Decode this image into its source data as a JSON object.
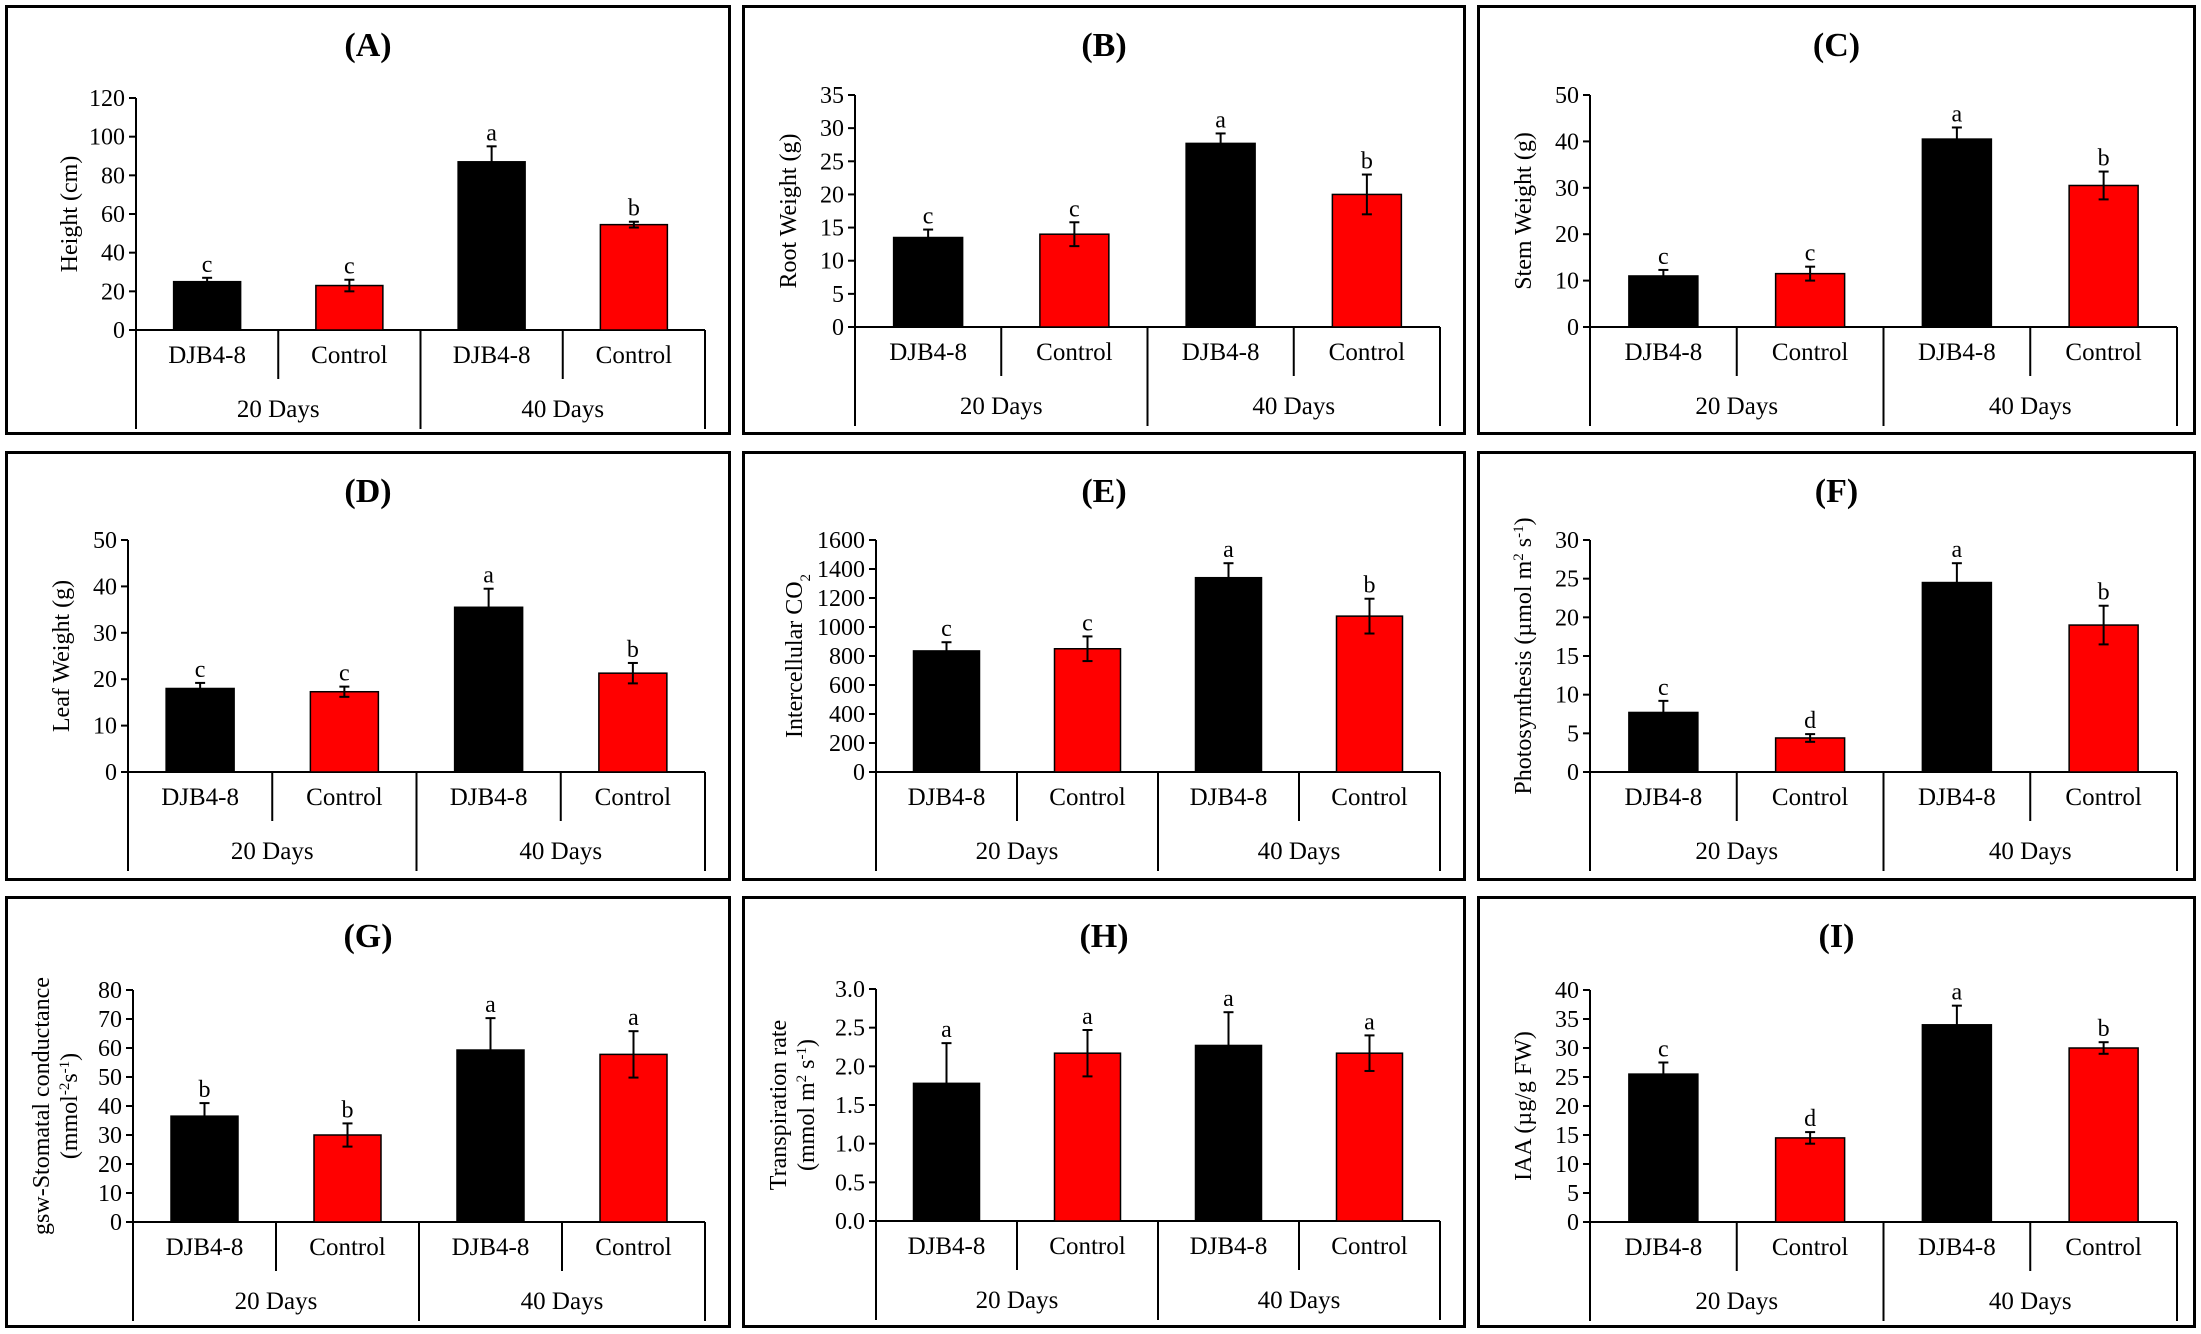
{
  "colors": {
    "djb": "#000000",
    "control": "#ff0000",
    "frame": "#000000"
  },
  "group_labels": [
    "20 Days",
    "40 Days"
  ],
  "chart_data": [
    {
      "id": "A",
      "type": "bar",
      "title": "(A)",
      "ylabel": [
        "Height (cm)"
      ],
      "ylim": [
        0,
        120
      ],
      "yticks": [
        "0",
        "20",
        "40",
        "60",
        "80",
        "100",
        "120"
      ],
      "categories": [
        "DJB4-8",
        "Control",
        "DJB4-8",
        "Control"
      ],
      "groups": [
        "20 Days",
        "40 Days"
      ],
      "values": [
        25,
        23,
        87,
        54.5
      ],
      "errors": [
        2,
        3,
        8,
        1.5
      ],
      "letters": [
        "c",
        "c",
        "a",
        "b"
      ]
    },
    {
      "id": "B",
      "type": "bar",
      "title": "(B)",
      "ylabel": [
        "Root Weight (g)"
      ],
      "ylim": [
        0,
        35
      ],
      "yticks": [
        "0",
        "5",
        "10",
        "15",
        "20",
        "25",
        "30",
        "35"
      ],
      "categories": [
        "DJB4-8",
        "Control",
        "DJB4-8",
        "Control"
      ],
      "groups": [
        "20 Days",
        "40 Days"
      ],
      "values": [
        13.5,
        14,
        27.7,
        20
      ],
      "errors": [
        1.2,
        1.8,
        1.5,
        3
      ],
      "letters": [
        "c",
        "c",
        "a",
        "b"
      ]
    },
    {
      "id": "C",
      "type": "bar",
      "title": "(C)",
      "ylabel": [
        "Stem Weight (g)"
      ],
      "ylim": [
        0,
        50
      ],
      "yticks": [
        "0",
        "10",
        "20",
        "30",
        "40",
        "50"
      ],
      "categories": [
        "DJB4-8",
        "Control",
        "DJB4-8",
        "Control"
      ],
      "groups": [
        "20 Days",
        "40 Days"
      ],
      "values": [
        11,
        11.5,
        40.5,
        30.5
      ],
      "errors": [
        1.3,
        1.5,
        2.5,
        3
      ],
      "letters": [
        "c",
        "c",
        "a",
        "b"
      ]
    },
    {
      "id": "D",
      "type": "bar",
      "title": "(D)",
      "ylabel": [
        "Leaf Weight (g)"
      ],
      "ylim": [
        0,
        50
      ],
      "yticks": [
        "0",
        "10",
        "20",
        "30",
        "40",
        "50"
      ],
      "categories": [
        "DJB4-8",
        "Control",
        "DJB4-8",
        "Control"
      ],
      "groups": [
        "20 Days",
        "40 Days"
      ],
      "values": [
        18,
        17.3,
        35.5,
        21.3
      ],
      "errors": [
        1.2,
        1.1,
        4,
        2.2
      ],
      "letters": [
        "c",
        "c",
        "a",
        "b"
      ]
    },
    {
      "id": "E",
      "type": "bar",
      "title": "(E)",
      "ylabel": [
        "Intercellular CO",
        "2"
      ],
      "ylim": [
        0,
        1600
      ],
      "yticks": [
        "0",
        "200",
        "400",
        "600",
        "800",
        "1000",
        "1200",
        "1400",
        "1600"
      ],
      "categories": [
        "DJB4-8",
        "Control",
        "DJB4-8",
        "Control"
      ],
      "groups": [
        "20 Days",
        "40 Days"
      ],
      "values": [
        835,
        850,
        1340,
        1075
      ],
      "errors": [
        60,
        85,
        100,
        120
      ],
      "letters": [
        "c",
        "c",
        "a",
        "b"
      ]
    },
    {
      "id": "F",
      "type": "bar",
      "title": "(F)",
      "ylabel": [
        "Photosynthesis (µmol m",
        "2",
        " s",
        "-1",
        ")"
      ],
      "ylim": [
        0,
        30
      ],
      "yticks": [
        "0",
        "5",
        "10",
        "15",
        "20",
        "25",
        "30"
      ],
      "categories": [
        "DJB4-8",
        "Control",
        "DJB4-8",
        "Control"
      ],
      "groups": [
        "20 Days",
        "40 Days"
      ],
      "values": [
        7.7,
        4.4,
        24.5,
        19
      ],
      "errors": [
        1.5,
        0.5,
        2.5,
        2.5
      ],
      "letters": [
        "c",
        "d",
        "a",
        "b"
      ]
    },
    {
      "id": "G",
      "type": "bar",
      "title": "(G)",
      "ylabel": [
        "gsw-Stomatal conductance",
        "(mmol",
        "-2",
        "s",
        "-1",
        ")"
      ],
      "ylim": [
        0,
        80
      ],
      "yticks": [
        "0",
        "10",
        "20",
        "30",
        "40",
        "50",
        "60",
        "70",
        "80"
      ],
      "categories": [
        "DJB4-8",
        "Control",
        "DJB4-8",
        "Control"
      ],
      "groups": [
        "20 Days",
        "40 Days"
      ],
      "values": [
        36.5,
        30,
        59.3,
        57.8
      ],
      "errors": [
        4.5,
        4,
        11,
        8
      ],
      "letters": [
        "b",
        "b",
        "a",
        "a"
      ]
    },
    {
      "id": "H",
      "type": "bar",
      "title": "(H)",
      "ylabel": [
        "Transpiration rate",
        "(mmol m",
        "2",
        " s",
        "-1",
        ")"
      ],
      "ylim": [
        0,
        3.0
      ],
      "yticks": [
        "0.0",
        "0.5",
        "1.0",
        "1.5",
        "2.0",
        "2.5",
        "3.0"
      ],
      "categories": [
        "DJB4-8",
        "Control",
        "DJB4-8",
        "Control"
      ],
      "groups": [
        "20 Days",
        "40 Days"
      ],
      "values": [
        1.78,
        2.17,
        2.27,
        2.17
      ],
      "errors": [
        0.52,
        0.3,
        0.43,
        0.23
      ],
      "letters": [
        "a",
        "a",
        "a",
        "a"
      ]
    },
    {
      "id": "I",
      "type": "bar",
      "title": "(I)",
      "ylabel": [
        "IAA (µg/g FW)"
      ],
      "ylim": [
        0,
        40
      ],
      "yticks": [
        "0",
        "5",
        "10",
        "15",
        "20",
        "25",
        "30",
        "35",
        "40"
      ],
      "categories": [
        "DJB4-8",
        "Control",
        "DJB4-8",
        "Control"
      ],
      "groups": [
        "20 Days",
        "40 Days"
      ],
      "values": [
        25.5,
        14.5,
        34,
        30
      ],
      "errors": [
        2,
        1,
        3.3,
        1
      ],
      "letters": [
        "c",
        "d",
        "a",
        "b"
      ]
    }
  ]
}
